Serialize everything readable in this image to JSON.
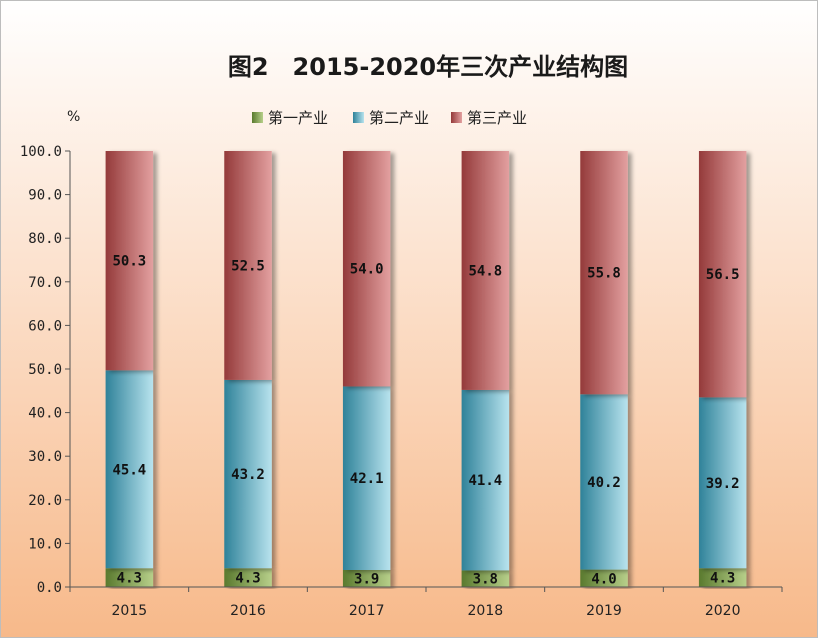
{
  "chart_data": {
    "type": "bar",
    "stacked": true,
    "title": "图2　2015-2020年三次产业结构图",
    "unit": "%",
    "xlabel": "",
    "ylabel": "",
    "ylim": [
      0,
      100
    ],
    "yticks": [
      "0.0",
      "10.0",
      "20.0",
      "30.0",
      "40.0",
      "50.0",
      "60.0",
      "70.0",
      "80.0",
      "90.0",
      "100.0"
    ],
    "categories": [
      "2015",
      "2016",
      "2017",
      "2018",
      "2019",
      "2020"
    ],
    "legend_position": "top-center",
    "series": [
      {
        "name": "第一产业",
        "values": [
          4.3,
          4.3,
          3.9,
          3.8,
          4.0,
          4.3
        ],
        "labels": [
          "4.3",
          "4.3",
          "3.9",
          "3.8",
          "4.0",
          "4.3"
        ],
        "color_dark": "#5a7a2e",
        "color_light": "#b7cf8a"
      },
      {
        "name": "第二产业",
        "values": [
          45.4,
          43.2,
          42.1,
          41.4,
          40.2,
          39.2
        ],
        "labels": [
          "45.4",
          "43.2",
          "42.1",
          "41.4",
          "40.2",
          "39.2"
        ],
        "color_dark": "#2f8299",
        "color_light": "#b8e3ee"
      },
      {
        "name": "第三产业",
        "values": [
          50.3,
          52.5,
          54.0,
          54.8,
          55.8,
          56.5
        ],
        "labels": [
          "50.3",
          "52.5",
          "54.0",
          "54.8",
          "55.8",
          "56.5"
        ],
        "color_dark": "#943a3a",
        "color_light": "#e3a0a0"
      }
    ],
    "background_gradient": [
      "#ffffff",
      "#f7b98a"
    ]
  }
}
